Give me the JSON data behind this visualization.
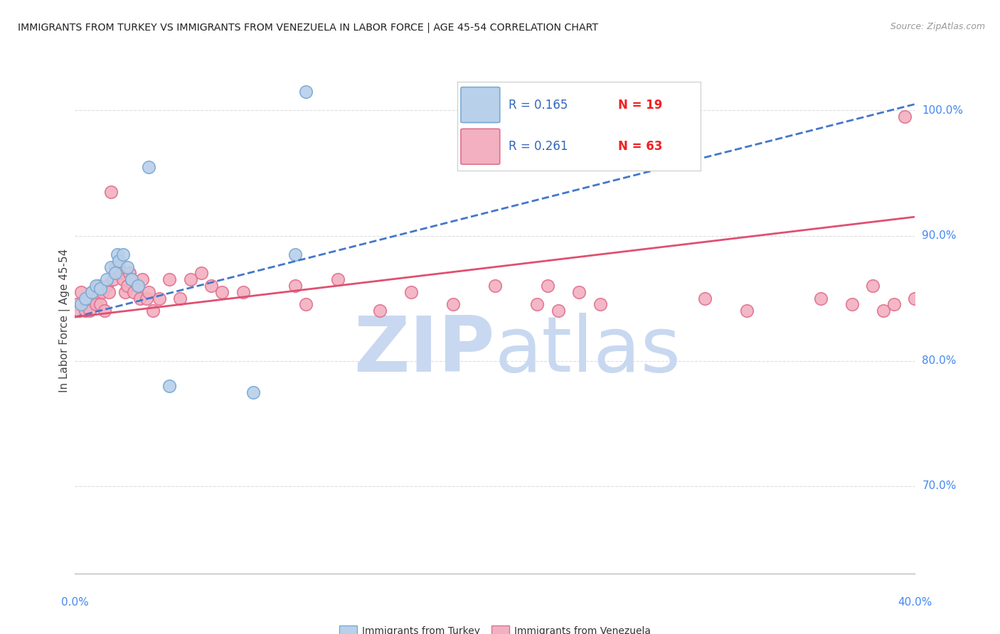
{
  "title": "IMMIGRANTS FROM TURKEY VS IMMIGRANTS FROM VENEZUELA IN LABOR FORCE | AGE 45-54 CORRELATION CHART",
  "source_text": "Source: ZipAtlas.com",
  "ylabel": "In Labor Force | Age 45-54",
  "xlim": [
    0.0,
    40.0
  ],
  "ylim": [
    63.0,
    103.5
  ],
  "y_ticks_right": [
    70.0,
    80.0,
    90.0,
    100.0
  ],
  "y_tick_labels_right": [
    "70.0%",
    "80.0%",
    "90.0%",
    "100.0%"
  ],
  "legend_r1": "R = 0.165",
  "legend_n1": "N = 19",
  "legend_r2": "R = 0.261",
  "legend_n2": "N = 63",
  "turkey_color": "#b8d0ea",
  "turkey_edge_color": "#7aaad4",
  "turkey_line_color": "#4477cc",
  "venezuela_color": "#f2b0c0",
  "venezuela_edge_color": "#e07090",
  "venezuela_line_color": "#e05070",
  "watermark_zip_color": "#c8d8f0",
  "watermark_atlas_color": "#c8d8f0",
  "background_color": "#ffffff",
  "grid_color": "#dddddd",
  "title_color": "#222222",
  "source_color": "#999999",
  "right_axis_color": "#4488ee",
  "bottom_axis_color": "#4488ee",
  "turkey_line_x0": 0.0,
  "turkey_line_y0": 83.5,
  "turkey_line_x1": 40.0,
  "turkey_line_y1": 100.5,
  "venezuela_line_x0": 0.0,
  "venezuela_line_y0": 83.5,
  "venezuela_line_x1": 40.0,
  "venezuela_line_y1": 91.5,
  "turkey_x": [
    0.3,
    0.5,
    0.8,
    1.0,
    1.2,
    1.5,
    1.7,
    1.9,
    2.0,
    2.1,
    2.3,
    2.5,
    2.7,
    3.0,
    3.5,
    4.5,
    8.5,
    10.5,
    11.0
  ],
  "turkey_y": [
    84.5,
    85.0,
    85.5,
    86.0,
    85.8,
    86.5,
    87.5,
    87.0,
    88.5,
    88.0,
    88.5,
    87.5,
    86.5,
    86.0,
    95.5,
    78.0,
    77.5,
    88.5,
    101.5
  ],
  "venezuela_x": [
    0.1,
    0.2,
    0.3,
    0.5,
    0.6,
    0.7,
    0.8,
    1.0,
    1.0,
    1.1,
    1.2,
    1.3,
    1.4,
    1.5,
    1.6,
    1.7,
    1.8,
    1.9,
    2.0,
    2.1,
    2.2,
    2.3,
    2.4,
    2.5,
    2.6,
    2.7,
    2.8,
    3.0,
    3.1,
    3.2,
    3.4,
    3.5,
    3.7,
    4.0,
    4.5,
    5.0,
    5.5,
    6.0,
    6.5,
    7.0,
    8.0,
    10.5,
    11.0,
    12.5,
    14.5,
    16.0,
    18.0,
    20.0,
    22.0,
    22.5,
    23.0,
    24.0,
    25.0,
    30.0,
    32.0,
    35.5,
    37.0,
    38.0,
    38.5,
    39.0,
    39.5,
    40.0,
    40.5
  ],
  "venezuela_y": [
    84.5,
    84.0,
    85.5,
    84.0,
    85.0,
    84.0,
    85.5,
    85.0,
    84.5,
    86.0,
    84.5,
    85.5,
    84.0,
    86.0,
    85.5,
    93.5,
    86.5,
    87.5,
    87.0,
    87.5,
    87.0,
    86.5,
    85.5,
    86.0,
    87.0,
    86.5,
    85.5,
    86.0,
    85.0,
    86.5,
    85.0,
    85.5,
    84.0,
    85.0,
    86.5,
    85.0,
    86.5,
    87.0,
    86.0,
    85.5,
    85.5,
    86.0,
    84.5,
    86.5,
    84.0,
    85.5,
    84.5,
    86.0,
    84.5,
    86.0,
    84.0,
    85.5,
    84.5,
    85.0,
    84.0,
    85.0,
    84.5,
    86.0,
    84.0,
    84.5,
    99.5,
    85.0,
    84.5
  ]
}
